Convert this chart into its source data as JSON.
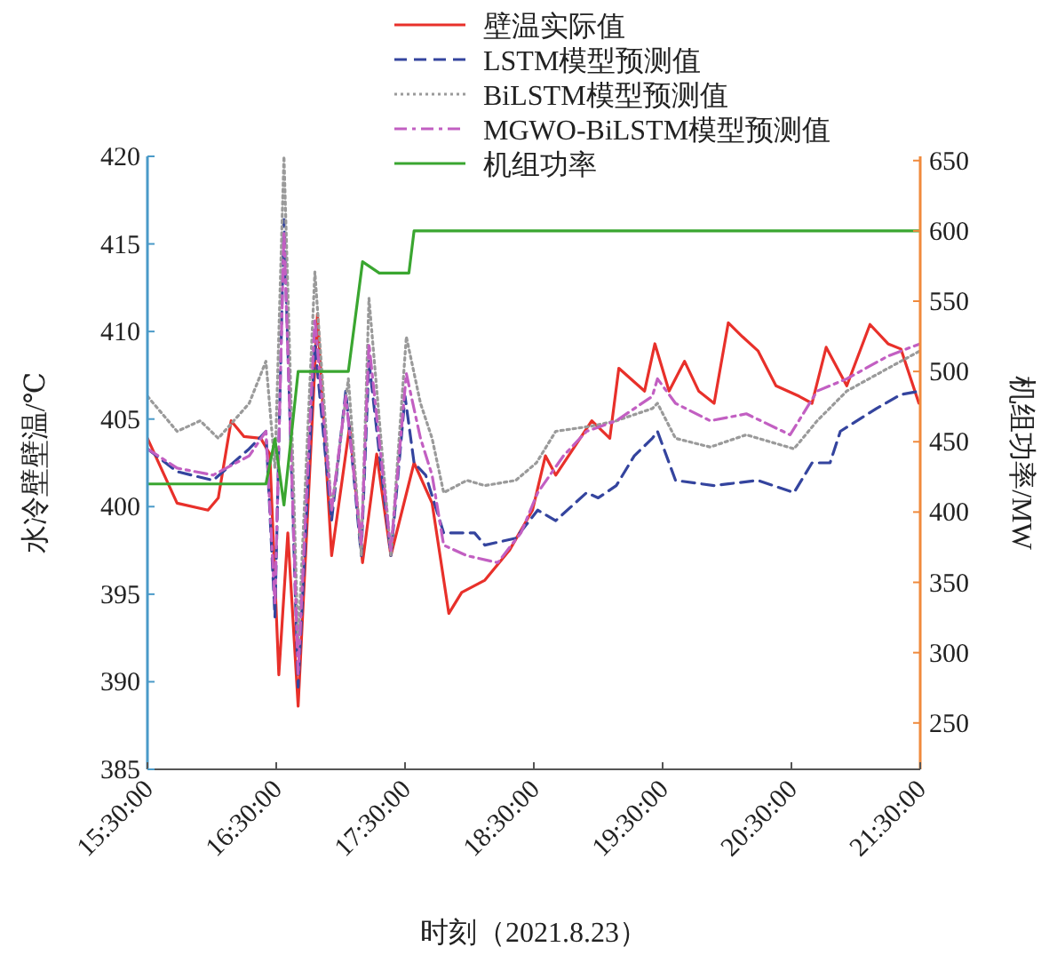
{
  "chart_data": {
    "type": "line",
    "xlabel": "时刻（2021.8.23）",
    "ylabel": "水冷壁壁温/℃",
    "y2label": "机组功率/MW",
    "legend": "top",
    "grid": false,
    "xlim": [
      15.5,
      21.5
    ],
    "xticks": [
      {
        "value": 15.5,
        "label": "15:30:00"
      },
      {
        "value": 16.5,
        "label": "16:30:00"
      },
      {
        "value": 17.5,
        "label": "17:30:00"
      },
      {
        "value": 18.5,
        "label": "18:30:00"
      },
      {
        "value": 19.5,
        "label": "19:30:00"
      },
      {
        "value": 20.5,
        "label": "20:30:00"
      },
      {
        "value": 21.5,
        "label": "21:30:00"
      }
    ],
    "ylim": [
      385,
      420
    ],
    "yticks": [
      385,
      390,
      395,
      400,
      405,
      410,
      415,
      420
    ],
    "y2lim": [
      217,
      653
    ],
    "y2ticks": [
      250,
      300,
      350,
      400,
      450,
      500,
      550,
      600,
      650
    ],
    "series": [
      {
        "name": "壁温实际值",
        "color": "#e8302a",
        "line_style": "solid",
        "x": [
          15.5,
          15.73,
          15.97,
          16.05,
          16.15,
          16.25,
          16.38,
          16.45,
          16.52,
          16.59,
          16.67,
          16.82,
          16.93,
          17.07,
          17.17,
          17.28,
          17.39,
          17.57,
          17.71,
          17.84,
          17.94,
          18.12,
          18.31,
          18.49,
          18.59,
          18.67,
          18.95,
          19.09,
          19.16,
          19.36,
          19.44,
          19.55,
          19.67,
          19.78,
          19.9,
          20.01,
          20.12,
          20.24,
          20.38,
          20.56,
          20.66,
          20.77,
          20.93,
          21.11,
          21.25,
          21.35,
          21.49
        ],
        "values": [
          403.9,
          400.2,
          399.8,
          400.5,
          404.9,
          404,
          403.9,
          403,
          390.4,
          398.5,
          388.6,
          411,
          397.2,
          404.6,
          396.8,
          403,
          397.2,
          402.5,
          400.2,
          393.9,
          395.1,
          395.8,
          397.5,
          399.8,
          402.9,
          401.8,
          404.9,
          403.9,
          407.9,
          406.6,
          409.3,
          406.6,
          408.3,
          406.6,
          405.9,
          410.5,
          409.7,
          408.9,
          406.9,
          406.3,
          405.9,
          409.1,
          406.9,
          410.4,
          409.3,
          409,
          405.9
        ]
      },
      {
        "name": "LSTM模型预测值",
        "color": "#34449e",
        "line_style": "dashed",
        "x": [
          15.5,
          15.73,
          16.01,
          16.29,
          16.42,
          16.49,
          16.56,
          16.67,
          16.8,
          16.93,
          17.04,
          17.16,
          17.22,
          17.39,
          17.5,
          17.57,
          17.66,
          17.8,
          18.04,
          18.12,
          18.36,
          18.53,
          18.67,
          18.91,
          19.0,
          19.14,
          19.28,
          19.42,
          19.46,
          19.6,
          19.9,
          20.01,
          20.24,
          20.52,
          20.66,
          20.8,
          20.88,
          21.16,
          21.35,
          21.5
        ],
        "values": [
          403.3,
          402,
          401.5,
          403.3,
          404.3,
          393.7,
          416.4,
          389.7,
          409.3,
          399.2,
          406.6,
          397.2,
          408.3,
          397.2,
          406.3,
          402.5,
          401.8,
          398.5,
          398.5,
          397.8,
          398.2,
          399.8,
          399.2,
          400.8,
          400.5,
          401.2,
          402.9,
          403.9,
          404.3,
          401.5,
          401.2,
          401.3,
          401.5,
          400.8,
          402.5,
          402.5,
          404.3,
          405.6,
          406.4,
          406.6
        ]
      },
      {
        "name": "BiLSTM模型预测值",
        "color": "#9a9a9a",
        "line_style": "dotted",
        "x": [
          15.5,
          15.73,
          15.91,
          16.05,
          16.29,
          16.42,
          16.49,
          16.56,
          16.67,
          16.8,
          16.93,
          17.06,
          17.16,
          17.22,
          17.39,
          17.51,
          17.62,
          17.71,
          17.8,
          17.98,
          18.12,
          18.36,
          18.52,
          18.67,
          18.95,
          19.14,
          19.42,
          19.46,
          19.6,
          19.87,
          20.15,
          20.52,
          20.7,
          20.93,
          21.25,
          21.5
        ],
        "values": [
          406.3,
          404.3,
          404.9,
          403.9,
          405.9,
          408.3,
          402.2,
          420,
          392.1,
          413.4,
          399.8,
          407.3,
          397.2,
          411.9,
          397.2,
          409.7,
          405.9,
          403.9,
          400.8,
          401.5,
          401.2,
          401.5,
          402.5,
          404.3,
          404.6,
          404.9,
          405.6,
          405.9,
          403.9,
          403.4,
          404.1,
          403.3,
          404.9,
          406.6,
          407.9,
          408.9
        ]
      },
      {
        "name": "MGWO-BiLSTM模型预测值",
        "color": "#c25fc2",
        "line_style": "dashdot",
        "x": [
          15.5,
          15.73,
          16.01,
          16.29,
          16.42,
          16.49,
          16.56,
          16.67,
          16.8,
          16.93,
          17.04,
          17.16,
          17.22,
          17.39,
          17.51,
          17.62,
          17.71,
          17.8,
          17.98,
          18.22,
          18.4,
          18.53,
          18.73,
          18.91,
          19.14,
          19.42,
          19.46,
          19.6,
          19.87,
          20.15,
          20.49,
          20.7,
          20.93,
          21.25,
          21.5
        ],
        "values": [
          403.3,
          402.2,
          401.8,
          402.9,
          404.3,
          394.4,
          415.7,
          390.4,
          410.7,
          399.8,
          406.3,
          397.8,
          409.3,
          397.5,
          407.6,
          403.9,
          401.8,
          397.8,
          397.2,
          396.8,
          398.5,
          400.8,
          402.9,
          404.3,
          404.9,
          406.3,
          407.3,
          405.9,
          404.9,
          405.3,
          404.1,
          406.6,
          407.3,
          408.6,
          409.3
        ]
      },
      {
        "name": "机组功率",
        "color": "#3aa630",
        "line_style": "solid",
        "axis": "y2",
        "x": [
          15.5,
          16.42,
          16.49,
          16.56,
          16.67,
          17.06,
          17.17,
          17.3,
          17.53,
          17.57,
          21.5
        ],
        "values": [
          420,
          420,
          452,
          405,
          500,
          500,
          578,
          570,
          570,
          600,
          600
        ]
      }
    ]
  }
}
